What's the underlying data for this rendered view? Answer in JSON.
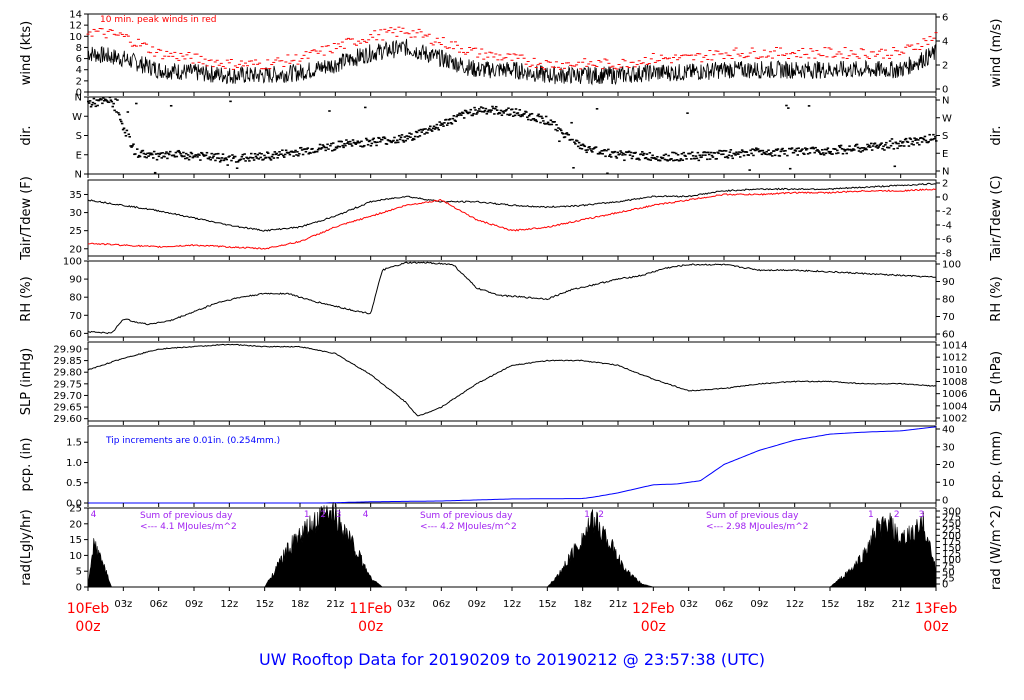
{
  "title": "UW Rooftop Data for 20190209  to  20190212 @ 23:57:38  (UTC)",
  "colors": {
    "obs": "#000000",
    "peak": "#ff0000",
    "dew": "#ff0000",
    "pcp": "#0000ff",
    "annot": "#a020f0",
    "date": "#ff0000"
  },
  "chart_data": [
    {
      "type": "line",
      "name": "wind",
      "ylabel": "wind (kts)",
      "ylabel_right": "wind (m/s)",
      "ylim": [
        0,
        14
      ],
      "yticks": [
        "0",
        "2",
        "4",
        "6",
        "8",
        "10",
        "12",
        "14"
      ],
      "yticks_right": [
        "0",
        "2",
        "4",
        "6"
      ],
      "annotation": "10 min. peak winds in red",
      "series": [
        {
          "name": "wind speed",
          "x": [
            0,
            3,
            6,
            9,
            12,
            15,
            18,
            21,
            24,
            27,
            30,
            33,
            36,
            39,
            42,
            45,
            48,
            51,
            54,
            57,
            60,
            63,
            66,
            69,
            72
          ],
          "values": [
            7,
            6,
            4,
            3.5,
            3,
            3,
            3.5,
            5,
            7,
            8,
            6,
            4,
            4,
            3,
            3,
            3,
            3.5,
            3.5,
            4,
            4,
            4,
            4,
            4,
            4,
            7
          ]
        },
        {
          "name": "peak wind",
          "x": [
            0,
            3,
            6,
            9,
            12,
            15,
            18,
            21,
            24,
            27,
            30,
            33,
            36,
            39,
            42,
            45,
            48,
            51,
            54,
            57,
            60,
            63,
            66,
            69,
            72
          ],
          "values": [
            11,
            10,
            7,
            6,
            5,
            5,
            6,
            8,
            10,
            11,
            9,
            7,
            6,
            5,
            5,
            5,
            6,
            6,
            7,
            7,
            7,
            7,
            7,
            7,
            10
          ]
        }
      ]
    },
    {
      "type": "scatter",
      "name": "dir",
      "ylabel": "dir.",
      "ylabel_right": "dir.",
      "ylim": [
        0,
        360
      ],
      "yticks": [
        "N",
        "E",
        "S",
        "W",
        "N"
      ],
      "series": [
        {
          "name": "wind direction",
          "x": [
            0,
            2,
            4,
            6,
            8,
            10,
            12,
            15,
            18,
            21,
            24,
            27,
            30,
            33,
            36,
            39,
            42,
            45,
            48,
            51,
            54,
            57,
            60,
            63,
            66,
            69,
            72
          ],
          "values": [
            330,
            340,
            100,
            80,
            90,
            80,
            70,
            80,
            105,
            130,
            150,
            165,
            230,
            300,
            290,
            250,
            120,
            90,
            80,
            80,
            90,
            105,
            100,
            110,
            120,
            140,
            170
          ]
        }
      ]
    },
    {
      "type": "line",
      "name": "temp",
      "ylabel": "Tair/Tdew (F)",
      "ylabel_right": "Tair/Tdew (C)",
      "ylim": [
        18,
        39
      ],
      "yticks": [
        "20",
        "25",
        "30",
        "35"
      ],
      "yticks_right": [
        "-8",
        "-6",
        "-4",
        "-2",
        "0",
        "2"
      ],
      "series": [
        {
          "name": "Tair",
          "x": [
            0,
            3,
            6,
            9,
            12,
            15,
            18,
            21,
            24,
            27,
            30,
            33,
            36,
            39,
            42,
            45,
            48,
            51,
            54,
            57,
            60,
            63,
            66,
            69,
            72
          ],
          "values": [
            33.5,
            32,
            30.5,
            28.5,
            26.5,
            25,
            26,
            29,
            33,
            34.5,
            33,
            33,
            32,
            31.5,
            32,
            33,
            34.5,
            34.5,
            36,
            36.5,
            36.5,
            36.5,
            37,
            37.5,
            38
          ]
        },
        {
          "name": "Tdew",
          "x": [
            0,
            3,
            6,
            9,
            12,
            15,
            18,
            21,
            24,
            27,
            30,
            33,
            36,
            39,
            42,
            45,
            48,
            51,
            54,
            57,
            60,
            63,
            66,
            69,
            72
          ],
          "values": [
            21.5,
            21,
            20.5,
            21,
            20.5,
            20,
            22,
            26,
            29,
            32,
            33.5,
            28,
            25,
            26,
            28,
            30,
            32,
            33.5,
            35,
            35,
            35.5,
            35.5,
            36,
            36,
            36.5
          ]
        }
      ]
    },
    {
      "type": "line",
      "name": "rh",
      "ylabel": "RH (%)",
      "ylabel_right": "RH (%)",
      "ylim": [
        58,
        100
      ],
      "yticks": [
        "60",
        "70",
        "80",
        "90",
        "100"
      ],
      "yticks_right": [
        "60",
        "70",
        "80",
        "90",
        "100"
      ],
      "series": [
        {
          "name": "RH",
          "x": [
            0,
            2,
            3,
            5,
            7,
            9,
            11,
            13,
            15,
            17,
            19,
            21,
            23,
            24,
            25,
            27,
            29,
            31,
            33,
            35,
            37,
            39,
            41,
            43,
            45,
            47,
            49,
            51,
            54,
            57,
            60,
            63,
            66,
            69,
            72
          ],
          "values": [
            61,
            60,
            68,
            65,
            67,
            72,
            77,
            80,
            82,
            82,
            78,
            75,
            72,
            71,
            95,
            99,
            99,
            98,
            85,
            81,
            80,
            79,
            84,
            87,
            90,
            92,
            96,
            98,
            98,
            95,
            95,
            94,
            93,
            92,
            91
          ]
        }
      ]
    },
    {
      "type": "line",
      "name": "slp",
      "ylabel": "SLP (inHg)",
      "ylabel_right": "SLP (hPa)",
      "ylim": [
        29.59,
        29.93
      ],
      "yticks": [
        "29.60",
        "29.65",
        "29.70",
        "29.75",
        "29.80",
        "29.85",
        "29.90"
      ],
      "yticks_right": [
        "1002",
        "1004",
        "1006",
        "1008",
        "1010",
        "1012",
        "1014"
      ],
      "series": [
        {
          "name": "SLP",
          "x": [
            0,
            3,
            6,
            9,
            12,
            15,
            18,
            21,
            24,
            27,
            28,
            30,
            33,
            36,
            39,
            42,
            45,
            48,
            51,
            54,
            57,
            60,
            63,
            66,
            69,
            72
          ],
          "values": [
            29.81,
            29.86,
            29.9,
            29.91,
            29.92,
            29.91,
            29.91,
            29.88,
            29.79,
            29.67,
            29.61,
            29.65,
            29.75,
            29.83,
            29.85,
            29.85,
            29.83,
            29.77,
            29.72,
            29.73,
            29.75,
            29.76,
            29.76,
            29.75,
            29.75,
            29.74
          ]
        }
      ]
    },
    {
      "type": "area",
      "name": "pcp",
      "ylabel": "pcp. (in)",
      "ylabel_right": "pcp. (mm)",
      "ylim": [
        0,
        1.9
      ],
      "yticks": [
        "0.0",
        "0.5",
        "1.0",
        "1.5"
      ],
      "yticks_right": [
        "0",
        "10",
        "20",
        "30",
        "40"
      ],
      "annotation": "Tip increments are 0.01in. (0.254mm.)",
      "series": [
        {
          "name": "precip",
          "x": [
            0,
            20,
            24,
            30,
            36,
            42,
            43,
            45,
            48,
            50,
            52,
            54,
            57,
            60,
            63,
            66,
            69,
            72
          ],
          "values": [
            0,
            0,
            0.03,
            0.05,
            0.1,
            0.11,
            0.15,
            0.25,
            0.45,
            0.47,
            0.55,
            0.95,
            1.3,
            1.55,
            1.7,
            1.75,
            1.78,
            1.88
          ]
        }
      ]
    },
    {
      "type": "area",
      "name": "rad",
      "ylabel": "rad(Lgly/hr)",
      "ylabel_right": "rad (W/m^2)",
      "ylim": [
        0,
        25
      ],
      "yticks": [
        "0",
        "5",
        "10",
        "15",
        "20",
        "25"
      ],
      "yticks_right": [
        "0",
        "25",
        "50",
        "75",
        "100",
        "125",
        "150",
        "175",
        "200",
        "225",
        "250",
        "275",
        "300"
      ],
      "annotations": [
        "Sum of previous day",
        "<--- 4.1 MJoules/m^2",
        "Sum of previous day",
        "<--- 4.2 MJoules/m^2",
        "Sum of previous day",
        "<--- 2.98 MJoules/m^2"
      ],
      "hour_marks": [
        "4",
        "1",
        "2",
        "3",
        "4",
        "1",
        "2",
        "1",
        "2",
        "3"
      ],
      "series": [
        {
          "name": "radiation",
          "x": [
            0,
            0.5,
            1.2,
            2,
            15,
            16,
            17,
            18,
            19,
            20,
            21,
            22,
            23,
            24,
            25,
            39,
            40,
            41,
            42,
            43,
            44,
            45,
            46,
            47,
            48,
            63,
            64,
            65,
            66,
            67,
            68,
            69,
            70,
            71,
            72
          ],
          "values": [
            0,
            14,
            8,
            0,
            0,
            6,
            12,
            16,
            19,
            22,
            23,
            17,
            10,
            3,
            0,
            0,
            4,
            10,
            16,
            21,
            16,
            9,
            4,
            1,
            0,
            0,
            3,
            6,
            11,
            18,
            20,
            14,
            17,
            20,
            5
          ]
        }
      ]
    }
  ],
  "x_axis": {
    "hour_labels": [
      "03z",
      "06z",
      "09z",
      "12z",
      "15z",
      "18z",
      "21z",
      "03z",
      "06z",
      "09z",
      "12z",
      "15z",
      "18z",
      "21z",
      "03z",
      "06z",
      "09z",
      "12z",
      "15z",
      "18z",
      "21z"
    ],
    "dates": [
      {
        "day": "10Feb",
        "hour": "00z"
      },
      {
        "day": "11Feb",
        "hour": "00z"
      },
      {
        "day": "12Feb",
        "hour": "00z"
      },
      {
        "day": "13Feb",
        "hour": "00z"
      }
    ]
  }
}
